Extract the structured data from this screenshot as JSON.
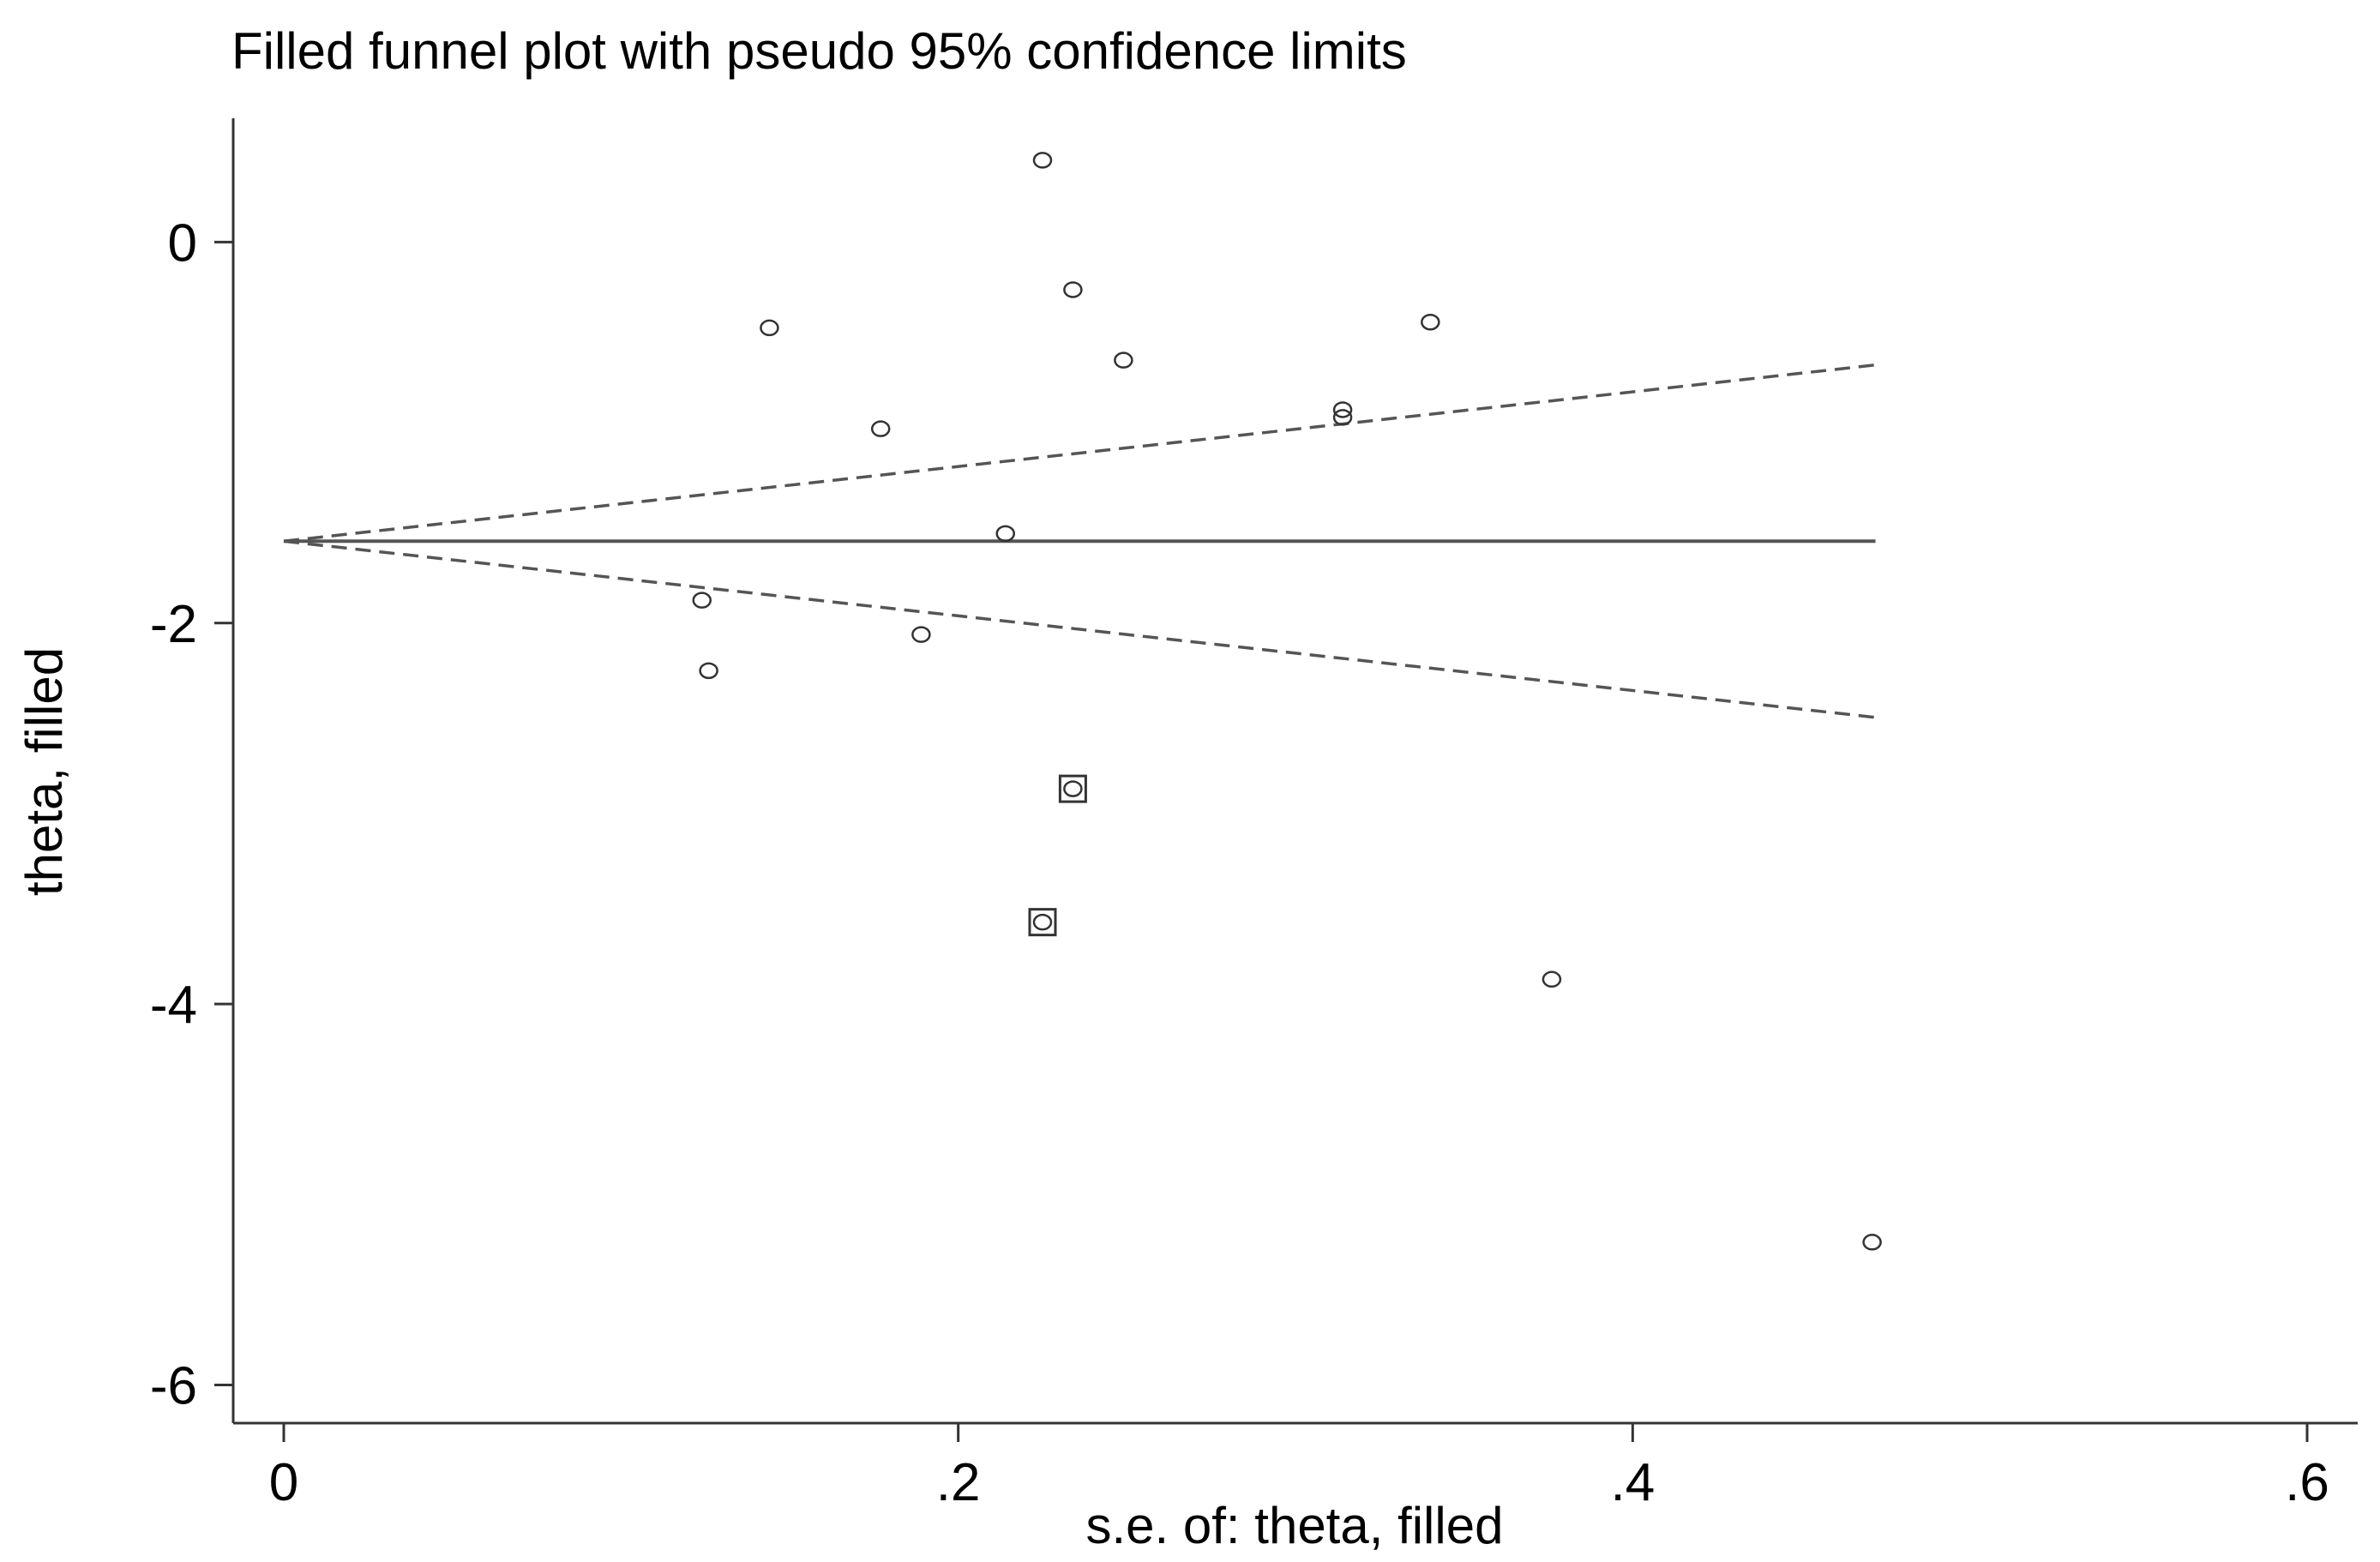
{
  "chart_data": {
    "type": "scatter",
    "title": "Filled funnel plot with pseudo 95% confidence limits",
    "xlabel": "s.e. of: theta, filled",
    "ylabel": "theta, filled",
    "xlim": [
      -0.015,
      0.615
    ],
    "ylim": [
      -6.2,
      0.65
    ],
    "x_ticks": [
      0,
      0.2,
      0.4,
      0.6
    ],
    "x_tick_labels": [
      "0",
      ".2",
      ".4",
      ".6"
    ],
    "y_ticks": [
      0,
      -2,
      -4,
      -6
    ],
    "y_tick_labels": [
      "0",
      "-2",
      "-4",
      "-6"
    ],
    "pooled_estimate": -1.57,
    "funnel_max_se": 0.472,
    "ci_multiplier": 1.96,
    "observed": [
      {
        "x": 0.225,
        "y": 0.43
      },
      {
        "x": 0.234,
        "y": -0.25
      },
      {
        "x": 0.144,
        "y": -0.45
      },
      {
        "x": 0.34,
        "y": -0.42
      },
      {
        "x": 0.249,
        "y": -0.62
      },
      {
        "x": 0.177,
        "y": -0.98
      },
      {
        "x": 0.314,
        "y": -0.88
      },
      {
        "x": 0.314,
        "y": -0.92
      },
      {
        "x": 0.214,
        "y": -1.53
      },
      {
        "x": 0.124,
        "y": -1.88
      },
      {
        "x": 0.189,
        "y": -2.06
      },
      {
        "x": 0.126,
        "y": -2.25
      },
      {
        "x": 0.234,
        "y": -2.87
      },
      {
        "x": 0.225,
        "y": -3.57
      },
      {
        "x": 0.376,
        "y": -3.87
      },
      {
        "x": 0.471,
        "y": -5.25
      }
    ],
    "filled": [
      {
        "x": 0.234,
        "y": -2.87
      },
      {
        "x": 0.225,
        "y": -3.57
      }
    ]
  }
}
